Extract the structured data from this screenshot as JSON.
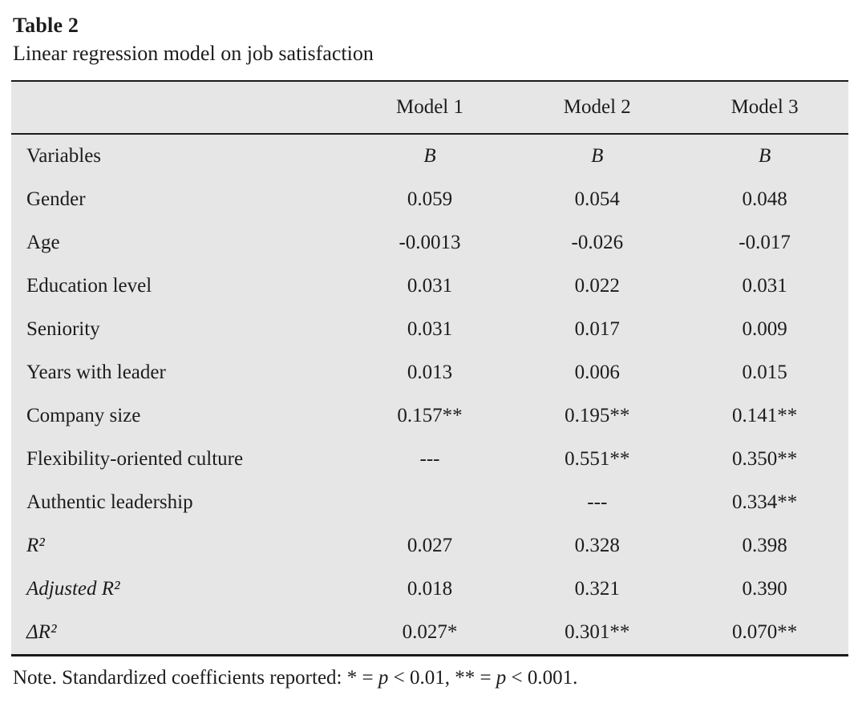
{
  "title": "Table 2",
  "subtitle": "Linear regression model on job satisfaction",
  "colors": {
    "table_background": "#e7e6e6",
    "rule_color": "#1b1b1b",
    "text_color": "#1c1c1c",
    "page_background": "#ffffff"
  },
  "table": {
    "column_headers": [
      "",
      "Model 1",
      "Model 2",
      "Model 3"
    ],
    "rows": [
      {
        "label": "Variables",
        "cells": [
          "B",
          "B",
          "B"
        ]
      },
      {
        "label": "Gender",
        "cells": [
          "0.059",
          "0.054",
          "0.048"
        ]
      },
      {
        "label": "Age",
        "cells": [
          "-0.0013",
          "-0.026",
          "-0.017"
        ]
      },
      {
        "label": "Education level",
        "cells": [
          "0.031",
          "0.022",
          "0.031"
        ]
      },
      {
        "label": "Seniority",
        "cells": [
          "0.031",
          "0.017",
          "0.009"
        ]
      },
      {
        "label": "Years with leader",
        "cells": [
          "0.013",
          "0.006",
          "0.015"
        ]
      },
      {
        "label": "Company size",
        "cells": [
          "0.157**",
          "0.195**",
          "0.141**"
        ]
      },
      {
        "label": "Flexibility-oriented culture",
        "cells": [
          "---",
          "0.551**",
          "0.350**"
        ]
      },
      {
        "label": "Authentic leadership",
        "cells": [
          "",
          "---",
          "0.334**"
        ]
      },
      {
        "label": "R²",
        "cells": [
          "0.027",
          "0.328",
          "0.398"
        ]
      },
      {
        "label": "Adjusted R²",
        "cells": [
          "0.018",
          "0.321",
          "0.390"
        ]
      },
      {
        "label": "ΔR²",
        "cells": [
          "0.027*",
          "0.301**",
          "0.070**"
        ]
      }
    ]
  },
  "note": {
    "part1": "Note. Standardized coefficients reported: * = ",
    "p1": "p",
    "part2": " < 0.01, ** = ",
    "p2": "p",
    "part3": " < 0.001."
  }
}
